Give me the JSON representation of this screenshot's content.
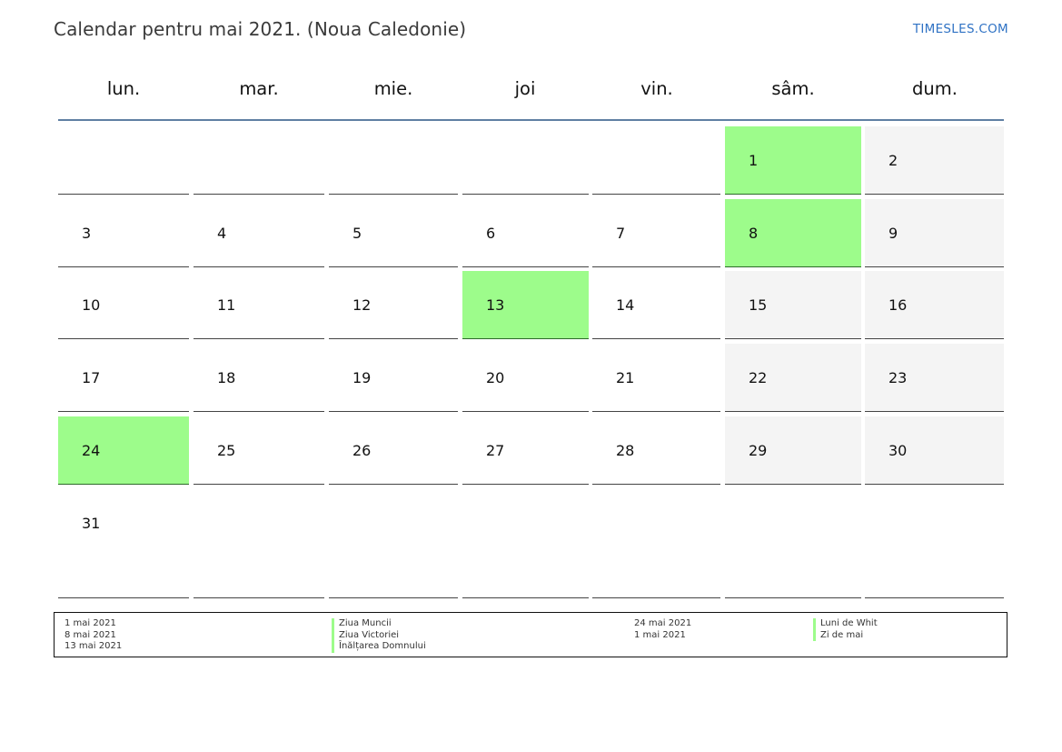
{
  "header": {
    "title": "Calendar pentru mai 2021. (Noua Caledonie)",
    "brand": "TIMESLES.COM"
  },
  "weekdays": [
    "lun.",
    "mar.",
    "mie.",
    "joi",
    "vin.",
    "sâm.",
    "dum."
  ],
  "colors": {
    "holiday": "#9dfc8b",
    "weekend": "#f4f4f4",
    "header_rule": "#5f7fa3",
    "brand": "#2f72c4"
  },
  "weeks": [
    [
      null,
      null,
      null,
      null,
      null,
      {
        "day": "1",
        "holiday": true
      },
      {
        "day": "2",
        "weekend": true
      }
    ],
    [
      {
        "day": "3"
      },
      {
        "day": "4"
      },
      {
        "day": "5"
      },
      {
        "day": "6"
      },
      {
        "day": "7"
      },
      {
        "day": "8",
        "holiday": true
      },
      {
        "day": "9",
        "weekend": true
      }
    ],
    [
      {
        "day": "10"
      },
      {
        "day": "11"
      },
      {
        "day": "12"
      },
      {
        "day": "13",
        "holiday": true
      },
      {
        "day": "14"
      },
      {
        "day": "15",
        "weekend": true
      },
      {
        "day": "16",
        "weekend": true
      }
    ],
    [
      {
        "day": "17"
      },
      {
        "day": "18"
      },
      {
        "day": "19"
      },
      {
        "day": "20"
      },
      {
        "day": "21"
      },
      {
        "day": "22",
        "weekend": true
      },
      {
        "day": "23",
        "weekend": true
      }
    ],
    [
      {
        "day": "24",
        "holiday": true
      },
      {
        "day": "25"
      },
      {
        "day": "26"
      },
      {
        "day": "27"
      },
      {
        "day": "28"
      },
      {
        "day": "29",
        "weekend": true
      },
      {
        "day": "30",
        "weekend": true
      }
    ],
    [
      {
        "day": "31"
      },
      null,
      null,
      null,
      null,
      null,
      null
    ]
  ],
  "legend": {
    "col1_dates": [
      "1 mai 2021",
      "8 mai 2021",
      "13 mai 2021"
    ],
    "col1_names": [
      "Ziua Muncii",
      "Ziua Victoriei",
      "Înălțarea Domnului"
    ],
    "col2_dates": [
      "24 mai 2021",
      "1 mai 2021"
    ],
    "col2_names": [
      "Luni de Whit",
      "Zi de mai"
    ]
  }
}
